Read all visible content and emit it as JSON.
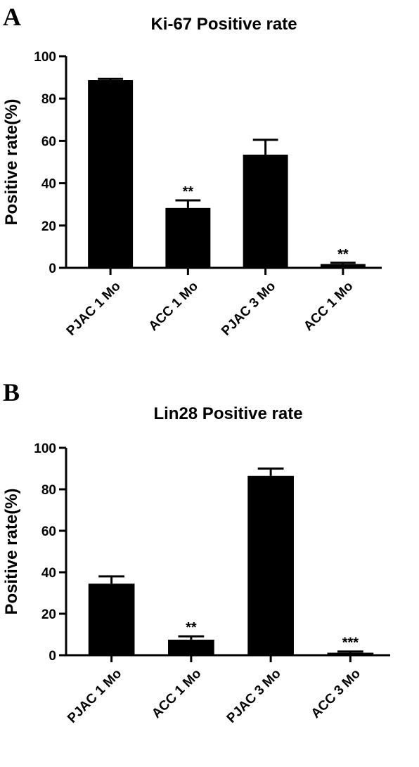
{
  "panels": [
    {
      "letter": "A"
    },
    {
      "letter": "B"
    }
  ],
  "chart_data": [
    {
      "type": "bar",
      "title": "Ki-67 Positive rate",
      "xlabel": "",
      "ylabel": "Positive rate(%)",
      "ylim": [
        0,
        100
      ],
      "yticks": [
        0,
        20,
        40,
        60,
        80,
        100
      ],
      "categories": [
        "PJAC 1 Mo",
        "ACC 1 Mo",
        "PJAC 3 Mo",
        "ACC 1 Mo"
      ],
      "values": [
        88.7,
        28.3,
        53.5,
        1.8
      ],
      "errors": [
        0.6,
        3.6,
        7.0,
        0.6
      ],
      "annotations": [
        "",
        "**",
        "",
        "**"
      ],
      "bar_color": "#000000",
      "grid": false,
      "legend": "none"
    },
    {
      "type": "bar",
      "title": "Lin28 Positive rate",
      "xlabel": "",
      "ylabel": "Positive rate(%)",
      "ylim": [
        0,
        100
      ],
      "yticks": [
        0,
        20,
        40,
        60,
        80,
        100
      ],
      "categories": [
        "PJAC 1 Mo",
        "ACC 1 Mo",
        "PJAC 3 Mo",
        "ACC 3  Mo"
      ],
      "values": [
        34.5,
        7.5,
        86.5,
        1.2
      ],
      "errors": [
        3.5,
        1.6,
        3.5,
        0.6
      ],
      "annotations": [
        "",
        "**",
        "",
        "***"
      ],
      "bar_color": "#000000",
      "grid": false,
      "legend": "none"
    }
  ]
}
